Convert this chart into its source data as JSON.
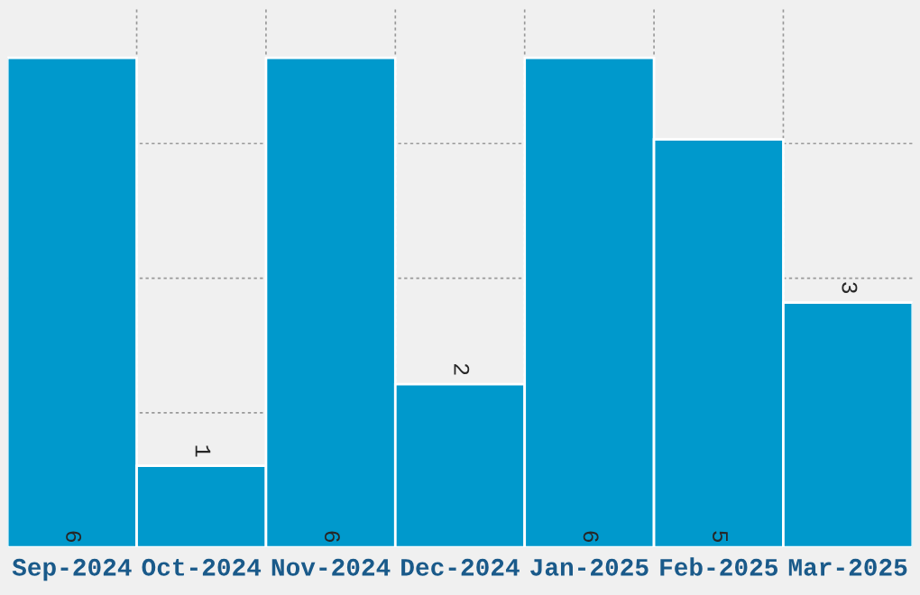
{
  "chart_data": {
    "type": "bar",
    "categories": [
      "Sep-2024",
      "Oct-2024",
      "Nov-2024",
      "Dec-2024",
      "Jan-2025",
      "Feb-2025",
      "Mar-2025"
    ],
    "values": [
      6,
      1,
      6,
      2,
      6,
      5,
      3
    ],
    "color": "#0099cc",
    "data_labels": true,
    "ylim": [
      0,
      6.6
    ],
    "yticks": [
      {
        "value": 1.65,
        "label": null
      },
      {
        "value": 3.3,
        "label": null
      },
      {
        "value": 4.95,
        "label": null
      }
    ],
    "tick_labels": "x",
    "grid": true
  }
}
